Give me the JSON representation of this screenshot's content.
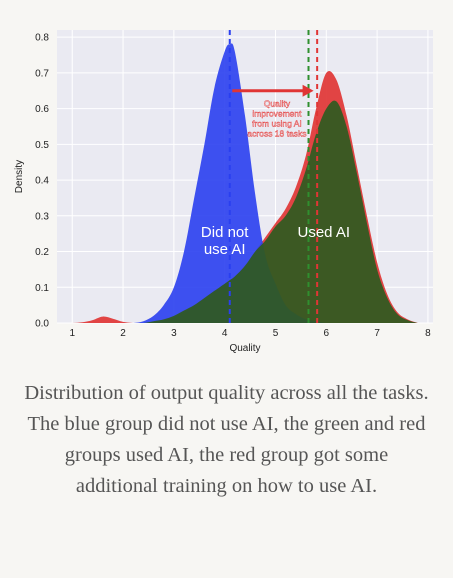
{
  "chart_data": {
    "type": "area",
    "title": "",
    "xlabel": "Quality",
    "ylabel": "Density",
    "xlim": [
      0.7,
      8.1
    ],
    "ylim": [
      0,
      0.82
    ],
    "x_ticks": [
      "1",
      "2",
      "3",
      "4",
      "5",
      "6",
      "7",
      "8"
    ],
    "y_ticks": [
      "0.0",
      "0.1",
      "0.2",
      "0.3",
      "0.4",
      "0.5",
      "0.6",
      "0.7",
      "0.8"
    ],
    "grid": true,
    "x": [
      0.8,
      1.0,
      1.2,
      1.4,
      1.6,
      1.8,
      2.0,
      2.2,
      2.4,
      2.6,
      2.8,
      3.0,
      3.2,
      3.4,
      3.6,
      3.8,
      4.0,
      4.1,
      4.2,
      4.4,
      4.6,
      4.8,
      5.0,
      5.2,
      5.4,
      5.6,
      5.8,
      6.0,
      6.2,
      6.4,
      6.6,
      6.8,
      7.0,
      7.2,
      7.4,
      7.6,
      7.8
    ],
    "series": [
      {
        "name": "Did not use AI",
        "color": "#2a3ff0",
        "values": [
          0,
          0,
          0,
          0,
          0,
          0,
          0,
          0,
          0.005,
          0.02,
          0.05,
          0.1,
          0.2,
          0.35,
          0.5,
          0.66,
          0.76,
          0.78,
          0.76,
          0.58,
          0.36,
          0.19,
          0.11,
          0.05,
          0.025,
          0.01,
          0.005,
          0,
          0,
          0,
          0,
          0,
          0,
          0,
          0,
          0,
          0
        ]
      },
      {
        "name": "Used AI",
        "color": "#2f5a20",
        "values": [
          0,
          0,
          0,
          0,
          0,
          0,
          0,
          0,
          0,
          0.005,
          0.01,
          0.02,
          0.035,
          0.05,
          0.07,
          0.09,
          0.11,
          0.12,
          0.13,
          0.16,
          0.2,
          0.23,
          0.27,
          0.3,
          0.35,
          0.43,
          0.53,
          0.6,
          0.62,
          0.55,
          0.42,
          0.28,
          0.15,
          0.07,
          0.025,
          0.008,
          0
        ]
      },
      {
        "name": "",
        "color": "#e03535",
        "values": [
          0,
          0,
          0.002,
          0.008,
          0.018,
          0.012,
          0.003,
          0,
          0,
          0,
          0.005,
          0.015,
          0.03,
          0.05,
          0.07,
          0.09,
          0.11,
          0.12,
          0.13,
          0.16,
          0.2,
          0.24,
          0.28,
          0.32,
          0.38,
          0.47,
          0.6,
          0.7,
          0.68,
          0.58,
          0.44,
          0.3,
          0.17,
          0.08,
          0.03,
          0.01,
          0
        ]
      }
    ],
    "vlines": [
      {
        "x": 4.1,
        "color": "#2a3ff0"
      },
      {
        "x": 5.65,
        "color": "#2f8f2f"
      },
      {
        "x": 5.82,
        "color": "#e03535"
      }
    ],
    "arrow": {
      "from": [
        4.15,
        0.65
      ],
      "to": [
        5.75,
        0.65
      ],
      "color": "#e03535"
    },
    "annotation": [
      "Quality",
      "improvement",
      "from using AI",
      "across 18 tasks"
    ],
    "group_labels": [
      {
        "lines": [
          "Did not",
          "use AI"
        ],
        "x": 4.0,
        "y": 0.24
      },
      {
        "lines": [
          "Used AI"
        ],
        "x": 5.95,
        "y": 0.24
      }
    ]
  },
  "caption": "Distribution of output quality across all the tasks. The blue group did not use AI, the green and red groups used AI, the red group got some additional training on how to use AI."
}
